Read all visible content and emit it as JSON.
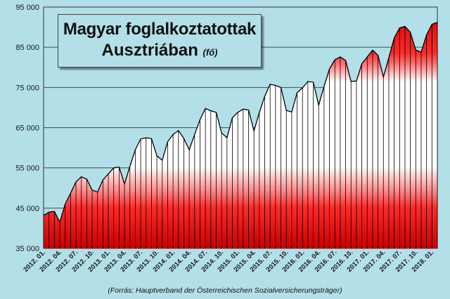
{
  "chart_data": {
    "type": "area",
    "title": "Magyar foglalkoztatottak",
    "title_line2": "Ausztriában",
    "title_unit": "(fő)",
    "source": "(Forrás:  Hauptverband der Österreichischen  Sozialversicherungsträger)",
    "ylim": [
      35000,
      95000
    ],
    "y_ticks": [
      35000,
      45000,
      55000,
      65000,
      75000,
      85000,
      95000
    ],
    "y_tick_labels": [
      "35 000",
      "45 000",
      "55 000",
      "65 000",
      "75 000",
      "85 000",
      "95 000"
    ],
    "grid": true,
    "x_tick_labels": [
      "2012. 01.",
      "2012. 04.",
      "2012. 07.",
      "2012. 10.",
      "2013. 01.",
      "2013. 04.",
      "2013. 07.",
      "2013. 10.",
      "2014. 01.",
      "2014. 04.",
      "2014. 07.",
      "2014. 10.",
      "2015. 01.",
      "2015. 04.",
      "2015. 07.",
      "2015. 10.",
      "2016. 01.",
      "2016. 04.",
      "2016. 07.",
      "2016. 10.",
      "2017. 01.",
      "2017. 04.",
      "2017. 07.",
      "2017. 10.",
      "2018. 01."
    ],
    "x": [
      "2012. 01.",
      "2012. 02.",
      "2012. 03.",
      "2012. 04.",
      "2012. 05.",
      "2012. 06.",
      "2012. 07.",
      "2012. 08.",
      "2012. 09.",
      "2012. 10.",
      "2012. 11.",
      "2012. 12.",
      "2013. 01.",
      "2013. 02.",
      "2013. 03.",
      "2013. 04.",
      "2013. 05.",
      "2013. 06.",
      "2013. 07.",
      "2013. 08.",
      "2013. 09.",
      "2013. 10.",
      "2013. 11.",
      "2013. 12.",
      "2014. 01.",
      "2014. 02.",
      "2014. 03.",
      "2014. 04.",
      "2014. 05.",
      "2014. 06.",
      "2014. 07.",
      "2014. 08.",
      "2014. 09.",
      "2014. 10.",
      "2014. 11.",
      "2014. 12.",
      "2015. 01.",
      "2015. 02.",
      "2015. 03.",
      "2015. 04.",
      "2015. 05.",
      "2015. 06.",
      "2015. 07.",
      "2015. 08.",
      "2015. 09.",
      "2015. 10.",
      "2015. 11.",
      "2015. 12.",
      "2016. 01.",
      "2016. 02.",
      "2016. 03.",
      "2016. 04.",
      "2016. 05.",
      "2016. 06.",
      "2016. 07.",
      "2016. 08.",
      "2016. 09.",
      "2016. 10.",
      "2016. 11.",
      "2016. 12.",
      "2017. 01.",
      "2017. 02.",
      "2017. 03.",
      "2017. 04.",
      "2017. 05.",
      "2017. 06.",
      "2017. 07.",
      "2017. 08.",
      "2017. 09.",
      "2017. 10.",
      "2017. 11.",
      "2017. 12.",
      "2018. 01.",
      "2018. 02."
    ],
    "series": [
      {
        "values": [
          43200,
          44000,
          44200,
          41500,
          46000,
          48700,
          51500,
          52800,
          52200,
          49500,
          49000,
          52000,
          53500,
          55000,
          55200,
          51000,
          55400,
          59500,
          62200,
          62500,
          62300,
          58000,
          56900,
          61500,
          63300,
          64300,
          62300,
          59500,
          63300,
          67000,
          69800,
          69200,
          68800,
          63700,
          62500,
          67500,
          68800,
          69600,
          69400,
          64200,
          68800,
          72800,
          75800,
          75500,
          75000,
          69300,
          68900,
          73700,
          74900,
          76500,
          76300,
          70600,
          75300,
          79600,
          81900,
          82600,
          81700,
          76500,
          76600,
          80900,
          82600,
          84300,
          83000,
          77600,
          82400,
          87300,
          89800,
          90200,
          88700,
          84300,
          83800,
          88100,
          90700,
          91200
        ]
      }
    ],
    "colors": {
      "background": "#b3dfe8",
      "fill_red": "#e02020",
      "fill_white": "#ffffff",
      "line": "#000000",
      "grid": "#4a4a4a"
    }
  }
}
